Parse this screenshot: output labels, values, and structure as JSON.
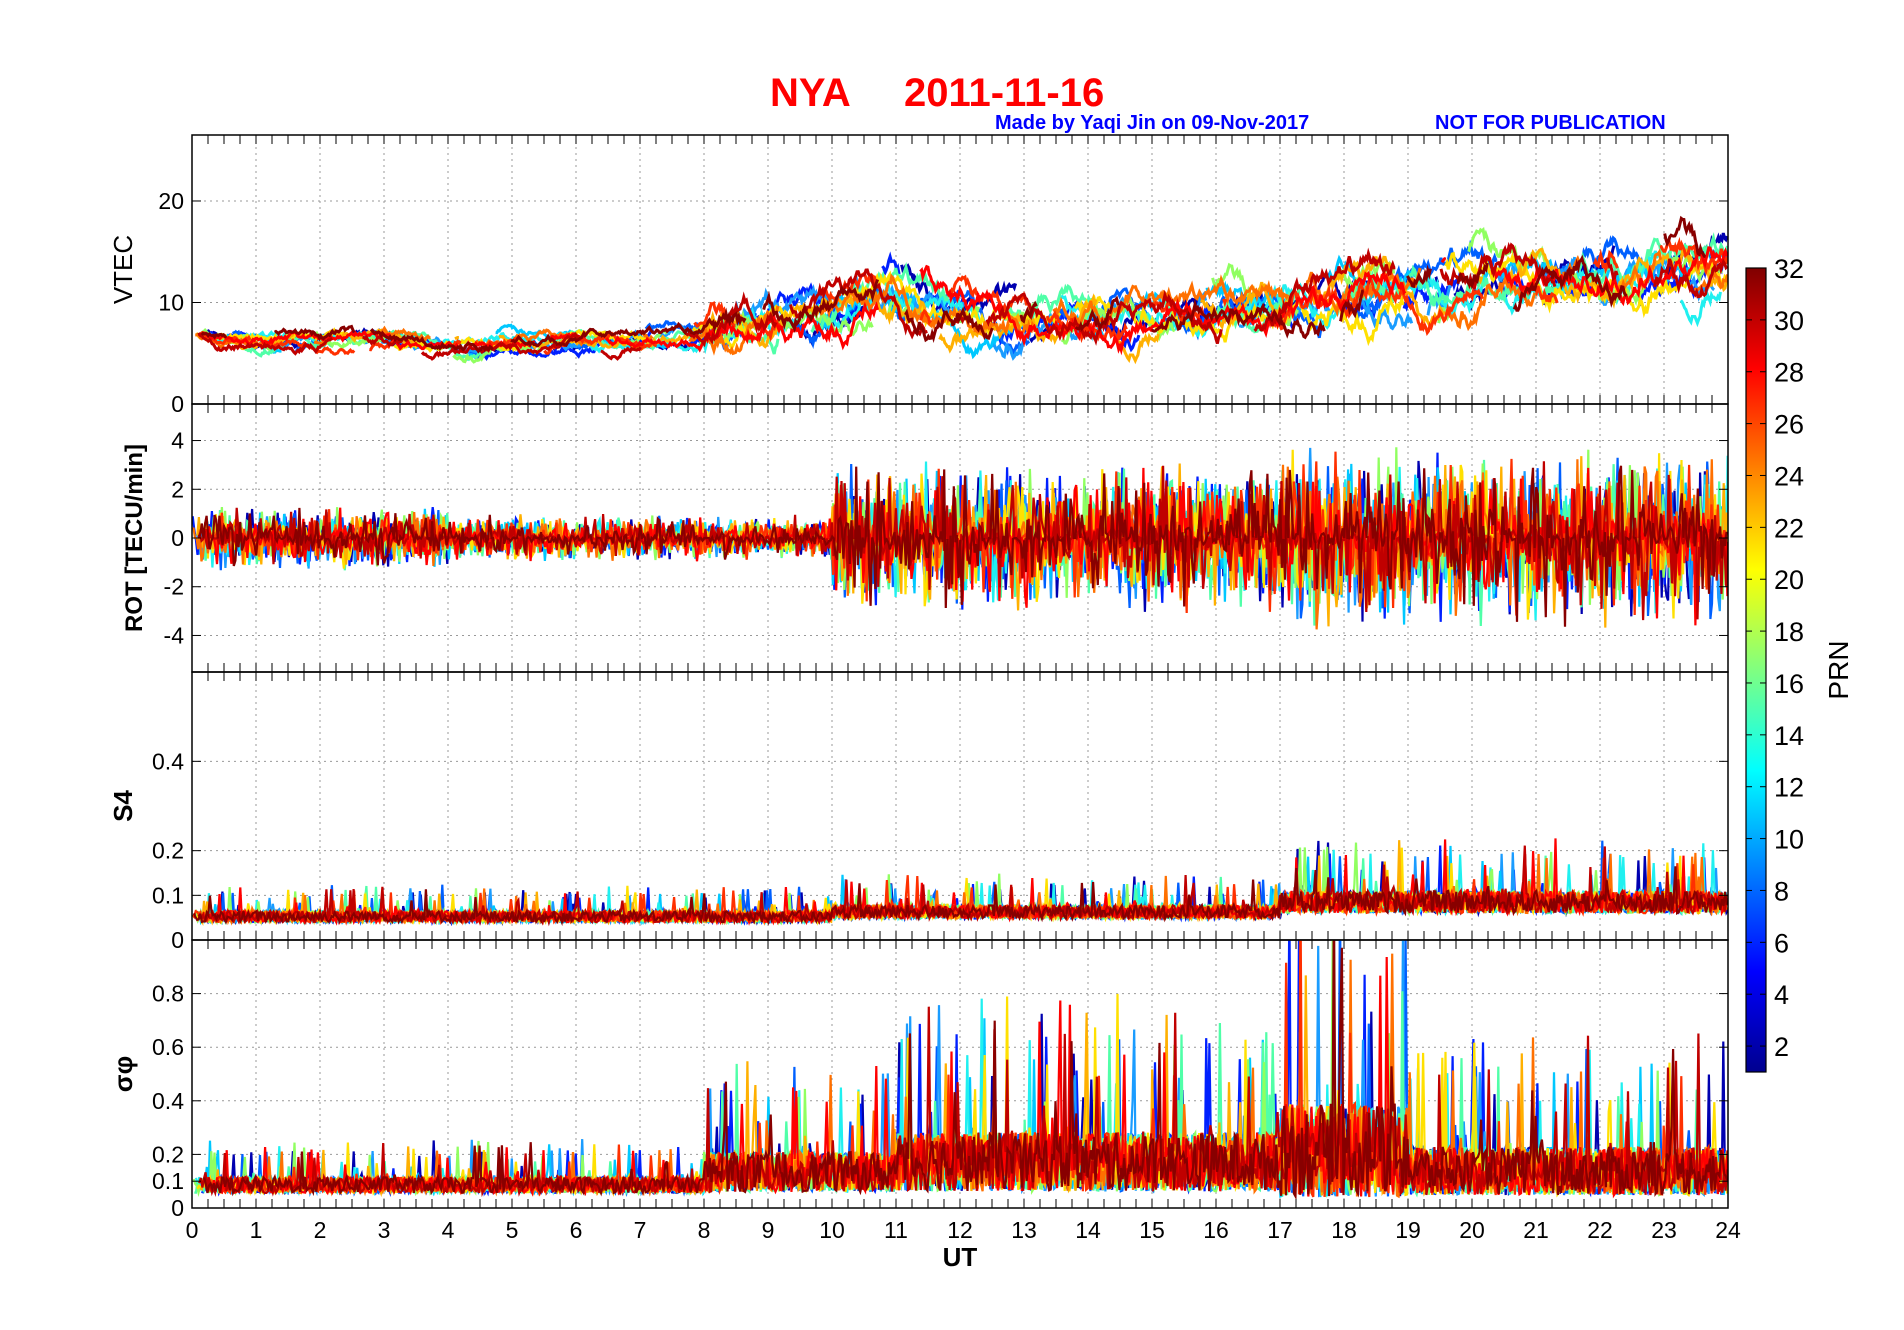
{
  "title": {
    "station": "NYA",
    "date": "2011-11-16"
  },
  "credit": {
    "made_by": "Made by Yaqi Jin on 09-Nov-2017",
    "notice": "NOT FOR PUBLICATION"
  },
  "chart_data": [
    {
      "type": "line",
      "name": "vtec",
      "ylabel": "VTEC",
      "ylim": [
        0,
        26.5
      ],
      "yticks": [
        {
          "v": 0,
          "label": "0"
        },
        {
          "v": 10,
          "label": "10"
        },
        {
          "v": 20,
          "label": "20"
        }
      ],
      "baseline": 7,
      "activity": [
        {
          "x": [
            0,
            3
          ],
          "level": [
            6,
            6.5
          ],
          "amp": 2.5
        },
        {
          "x": [
            3,
            8
          ],
          "level": [
            5.5,
            7
          ],
          "amp": 2.5
        },
        {
          "x": [
            8,
            11
          ],
          "level": [
            8,
            12
          ],
          "amp": 6
        },
        {
          "x": [
            11,
            17
          ],
          "level": [
            8,
            10
          ],
          "amp": 6
        },
        {
          "x": [
            17,
            24
          ],
          "level": [
            11,
            14
          ],
          "amp": 7
        }
      ]
    },
    {
      "type": "line",
      "name": "rot",
      "ylabel": "ROT [TECU/min]",
      "ylim": [
        -5.5,
        5.5
      ],
      "yticks": [
        {
          "v": -4,
          "label": "-4"
        },
        {
          "v": -2,
          "label": "-2"
        },
        {
          "v": 0,
          "label": "0"
        },
        {
          "v": 2,
          "label": "2"
        },
        {
          "v": 4,
          "label": "4"
        }
      ],
      "baseline": 0,
      "activity": [
        {
          "x": [
            0,
            4
          ],
          "level": [
            0,
            0
          ],
          "amp": 1.4
        },
        {
          "x": [
            4,
            10
          ],
          "level": [
            0,
            0
          ],
          "amp": 1.0
        },
        {
          "x": [
            10,
            17
          ],
          "level": [
            0,
            0
          ],
          "amp": 3.2
        },
        {
          "x": [
            17,
            24
          ],
          "level": [
            0,
            0
          ],
          "amp": 3.8
        }
      ]
    },
    {
      "type": "line",
      "name": "s4",
      "ylabel": "S4",
      "ylim": [
        0,
        0.6
      ],
      "yticks": [
        {
          "v": 0,
          "label": "0"
        },
        {
          "v": 0.1,
          "label": "0.1"
        },
        {
          "v": 0.2,
          "label": "0.2"
        },
        {
          "v": 0.4,
          "label": "0.4"
        }
      ],
      "baseline": 0.05,
      "activity": [
        {
          "x": [
            0,
            10
          ],
          "level": [
            0.05,
            0.05
          ],
          "amp": 0.025
        },
        {
          "x": [
            10,
            17
          ],
          "level": [
            0.06,
            0.06
          ],
          "amp": 0.03
        },
        {
          "x": [
            17,
            24
          ],
          "level": [
            0.08,
            0.08
          ],
          "amp": 0.05
        }
      ]
    },
    {
      "type": "line",
      "name": "sigma_phi",
      "ylabel": "σφ",
      "ylim": [
        0,
        1.0
      ],
      "yticks": [
        {
          "v": 0,
          "label": "0"
        },
        {
          "v": 0.1,
          "label": "0.1"
        },
        {
          "v": 0.2,
          "label": "0.2"
        },
        {
          "v": 0.4,
          "label": "0.4"
        },
        {
          "v": 0.6,
          "label": "0.6"
        },
        {
          "v": 0.8,
          "label": "0.8"
        }
      ],
      "baseline": 0.07,
      "activity": [
        {
          "x": [
            0,
            8
          ],
          "level": [
            0.08,
            0.08
          ],
          "amp": 0.06
        },
        {
          "x": [
            8,
            11
          ],
          "level": [
            0.12,
            0.12
          ],
          "amp": 0.15
        },
        {
          "x": [
            11,
            17
          ],
          "level": [
            0.15,
            0.15
          ],
          "amp": 0.22
        },
        {
          "x": [
            17,
            19
          ],
          "level": [
            0.18,
            0.18
          ],
          "amp": 0.35
        },
        {
          "x": [
            19,
            24
          ],
          "level": [
            0.12,
            0.12
          ],
          "amp": 0.18
        }
      ]
    }
  ],
  "xaxis": {
    "label": "UT",
    "xlim": [
      0,
      24
    ],
    "ticks": [
      "0",
      "1",
      "2",
      "3",
      "4",
      "5",
      "6",
      "7",
      "8",
      "9",
      "10",
      "11",
      "12",
      "13",
      "14",
      "15",
      "16",
      "17",
      "18",
      "19",
      "20",
      "21",
      "22",
      "23",
      "24"
    ]
  },
  "colorbar": {
    "label": "PRN",
    "range": [
      1,
      32
    ],
    "ticks": [
      "2",
      "4",
      "6",
      "8",
      "10",
      "12",
      "14",
      "16",
      "18",
      "20",
      "22",
      "24",
      "26",
      "28",
      "30",
      "32"
    ],
    "colormap": [
      "#00008f",
      "#0000ff",
      "#0080ff",
      "#00ffff",
      "#80ff80",
      "#ffff00",
      "#ff8000",
      "#ff0000",
      "#800000"
    ]
  },
  "series": [
    {
      "prn": 2,
      "color": "#0000b0"
    },
    {
      "prn": 5,
      "color": "#0020ff"
    },
    {
      "prn": 7,
      "color": "#0060ff"
    },
    {
      "prn": 9,
      "color": "#1a9cff"
    },
    {
      "prn": 11,
      "color": "#00c8ff"
    },
    {
      "prn": 13,
      "color": "#20f0f0"
    },
    {
      "prn": 16,
      "color": "#50ffa8"
    },
    {
      "prn": 18,
      "color": "#90ff60"
    },
    {
      "prn": 21,
      "color": "#ffe000"
    },
    {
      "prn": 23,
      "color": "#ffb000"
    },
    {
      "prn": 25,
      "color": "#ff7000"
    },
    {
      "prn": 27,
      "color": "#ff3000"
    },
    {
      "prn": 28,
      "color": "#ff0000"
    },
    {
      "prn": 30,
      "color": "#c00000"
    },
    {
      "prn": 32,
      "color": "#880000"
    }
  ]
}
